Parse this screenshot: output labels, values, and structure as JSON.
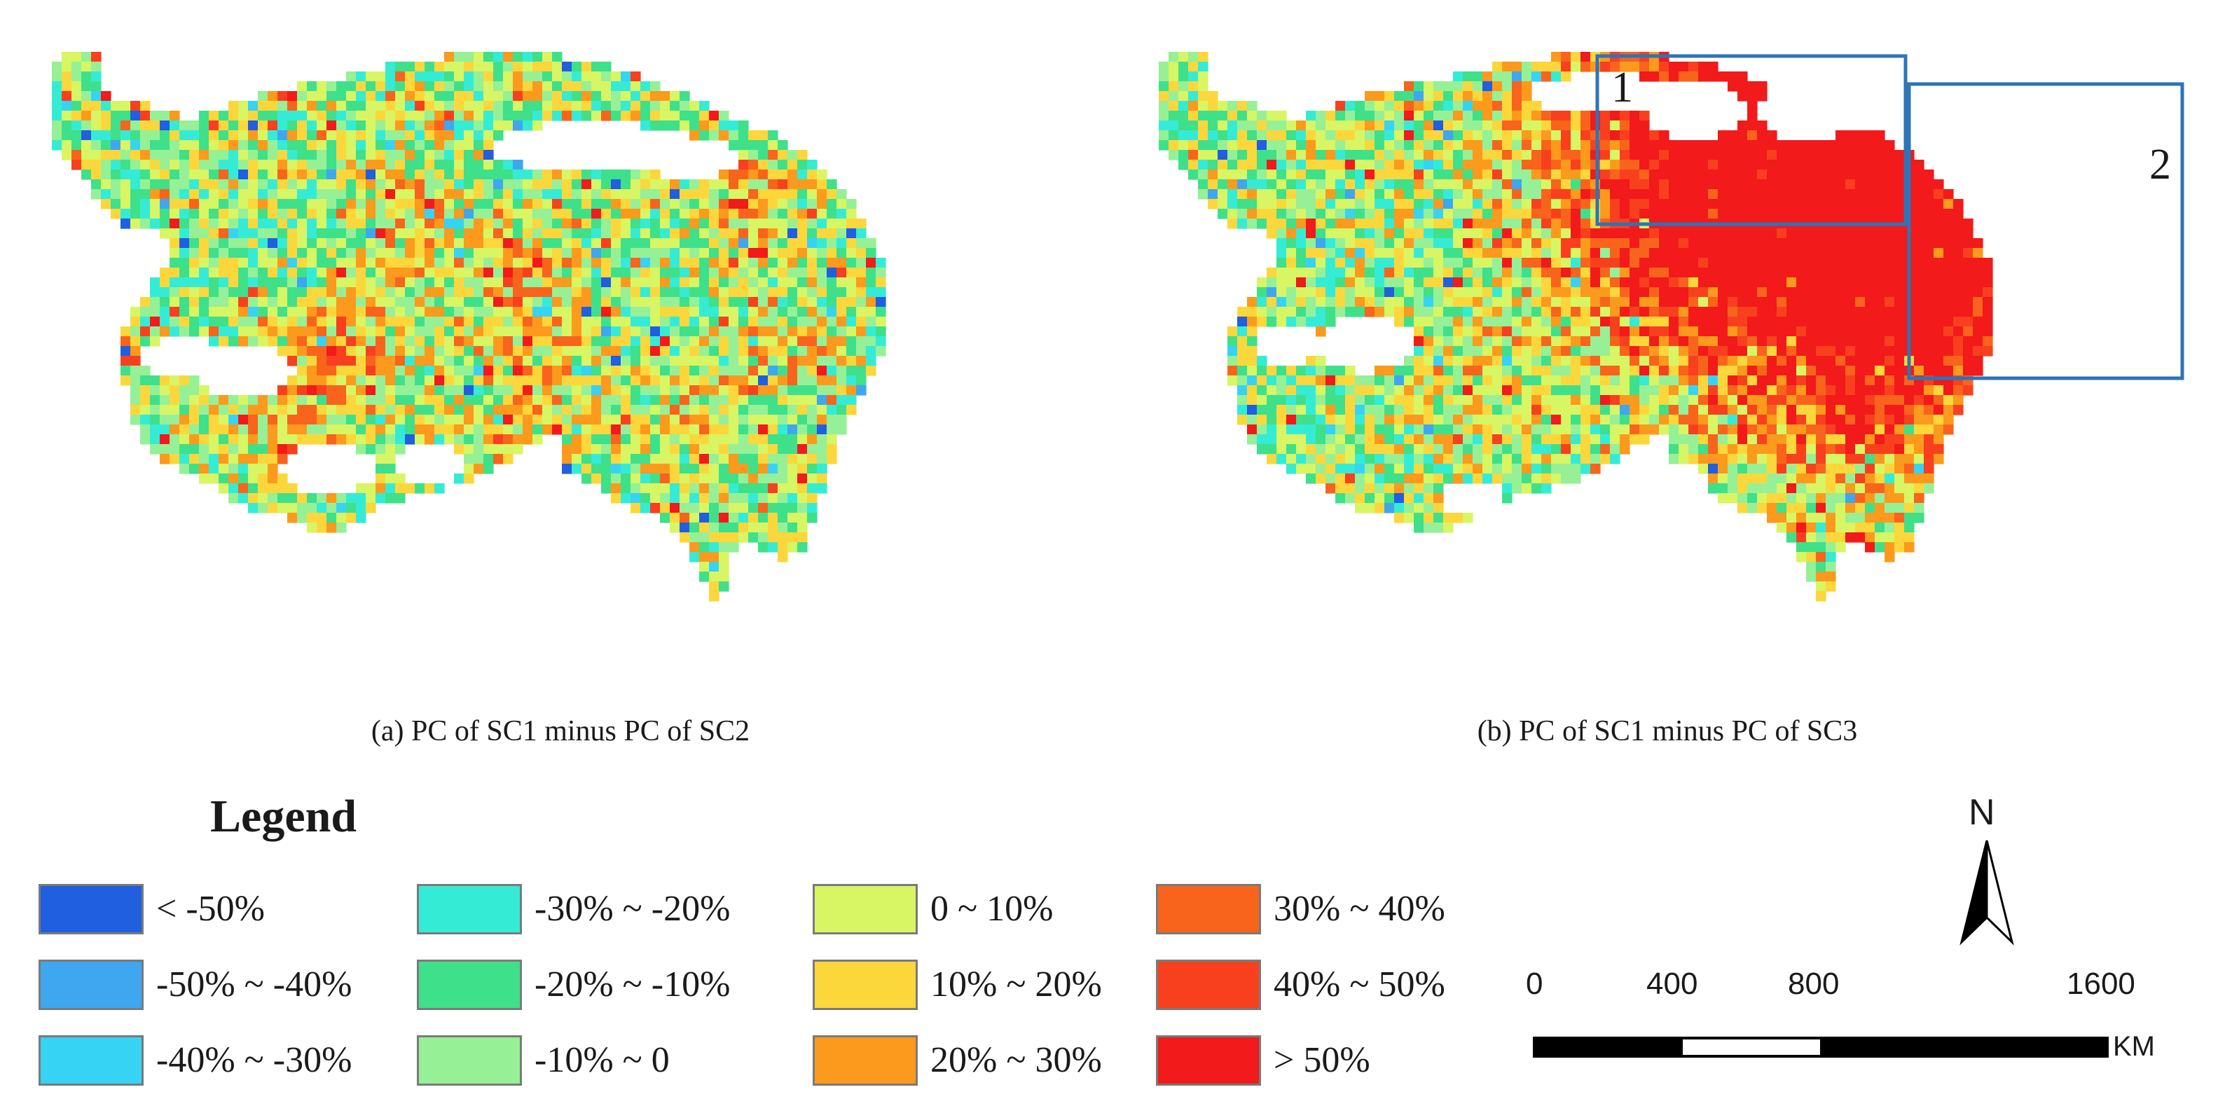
{
  "maps": [
    {
      "caption": "(a) PC of SC1 minus PC of SC2"
    },
    {
      "caption": "(b) PC of SC1 minus PC of SC3",
      "boxes": [
        {
          "label": "1"
        },
        {
          "label": "2"
        }
      ]
    }
  ],
  "legend": {
    "title": "Legend",
    "items": [
      {
        "label": "< -50%",
        "color": "#1f5fe0"
      },
      {
        "label": "-50% ~ -40%",
        "color": "#3ea7f0"
      },
      {
        "label": "-40% ~ -30%",
        "color": "#37d3f5"
      },
      {
        "label": "-30% ~ -20%",
        "color": "#34ecd5"
      },
      {
        "label": "-20% ~ -10%",
        "color": "#3fe08a"
      },
      {
        "label": "-10% ~ 0",
        "color": "#96f096"
      },
      {
        "label": "0 ~ 10%",
        "color": "#d8f564"
      },
      {
        "label": "10% ~ 20%",
        "color": "#fcd73c"
      },
      {
        "label": "20% ~ 30%",
        "color": "#fb9a1c"
      },
      {
        "label": "30% ~ 40%",
        "color": "#f8641c"
      },
      {
        "label": "40% ~ 50%",
        "color": "#f8401e"
      },
      {
        "label": "> 50%",
        "color": "#f21a1a"
      }
    ]
  },
  "north_arrow": {
    "label": "N"
  },
  "scale_bar": {
    "ticks": [
      "0",
      "400",
      "800",
      "1600"
    ],
    "unit": "KM"
  },
  "colors": {
    "box_outline": "#2d74b8",
    "no_data": "#ffffff"
  }
}
